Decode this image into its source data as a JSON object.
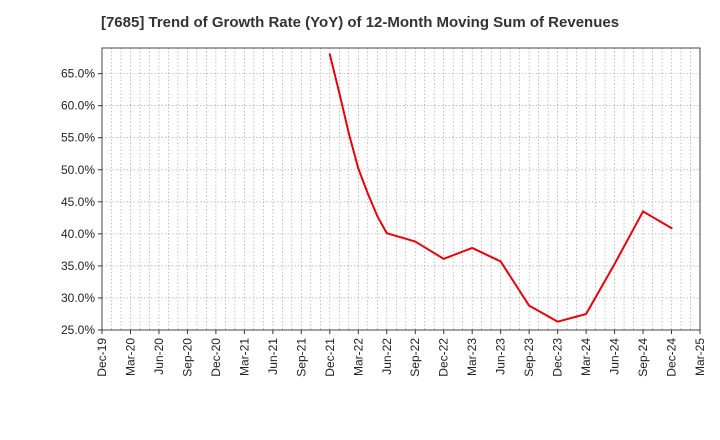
{
  "chart_data": {
    "type": "line",
    "title": "[7685]  Trend of Growth Rate (YoY) of 12-Month Moving Sum of Revenues",
    "xlabel": "",
    "ylabel": "",
    "x_tick_labels": [
      "Dec-19",
      "Mar-20",
      "Jun-20",
      "Sep-20",
      "Dec-20",
      "Mar-21",
      "Jun-21",
      "Sep-21",
      "Dec-21",
      "Mar-22",
      "Jun-22",
      "Sep-22",
      "Dec-22",
      "Mar-23",
      "Jun-23",
      "Sep-23",
      "Dec-23",
      "Mar-24",
      "Jun-24",
      "Sep-24",
      "Dec-24",
      "Mar-25"
    ],
    "y_tick_labels": [
      "25.0%",
      "30.0%",
      "35.0%",
      "40.0%",
      "45.0%",
      "50.0%",
      "55.0%",
      "60.0%",
      "65.0%"
    ],
    "ylim": [
      25.0,
      69.0
    ],
    "grid": true,
    "series": [
      {
        "color": "#e8000b",
        "points": [
          {
            "x": "Dec-21",
            "y": 68.0
          },
          {
            "x": "Jan-22",
            "y": 62.0
          },
          {
            "x": "Feb-22",
            "y": 55.7
          },
          {
            "x": "Mar-22",
            "y": 50.2
          },
          {
            "x": "Apr-22",
            "y": 46.3
          },
          {
            "x": "May-22",
            "y": 42.8
          },
          {
            "x": "Jun-22",
            "y": 40.1
          },
          {
            "x": "Sep-22",
            "y": 38.8
          },
          {
            "x": "Dec-22",
            "y": 36.1
          },
          {
            "x": "Mar-23",
            "y": 37.8
          },
          {
            "x": "Jun-23",
            "y": 35.7
          },
          {
            "x": "Sep-23",
            "y": 28.8
          },
          {
            "x": "Dec-23",
            "y": 26.3
          },
          {
            "x": "Mar-24",
            "y": 27.5
          },
          {
            "x": "Jun-24",
            "y": 35.3
          },
          {
            "x": "Sep-24",
            "y": 43.5
          },
          {
            "x": "Dec-24",
            "y": 40.9
          }
        ]
      }
    ]
  }
}
